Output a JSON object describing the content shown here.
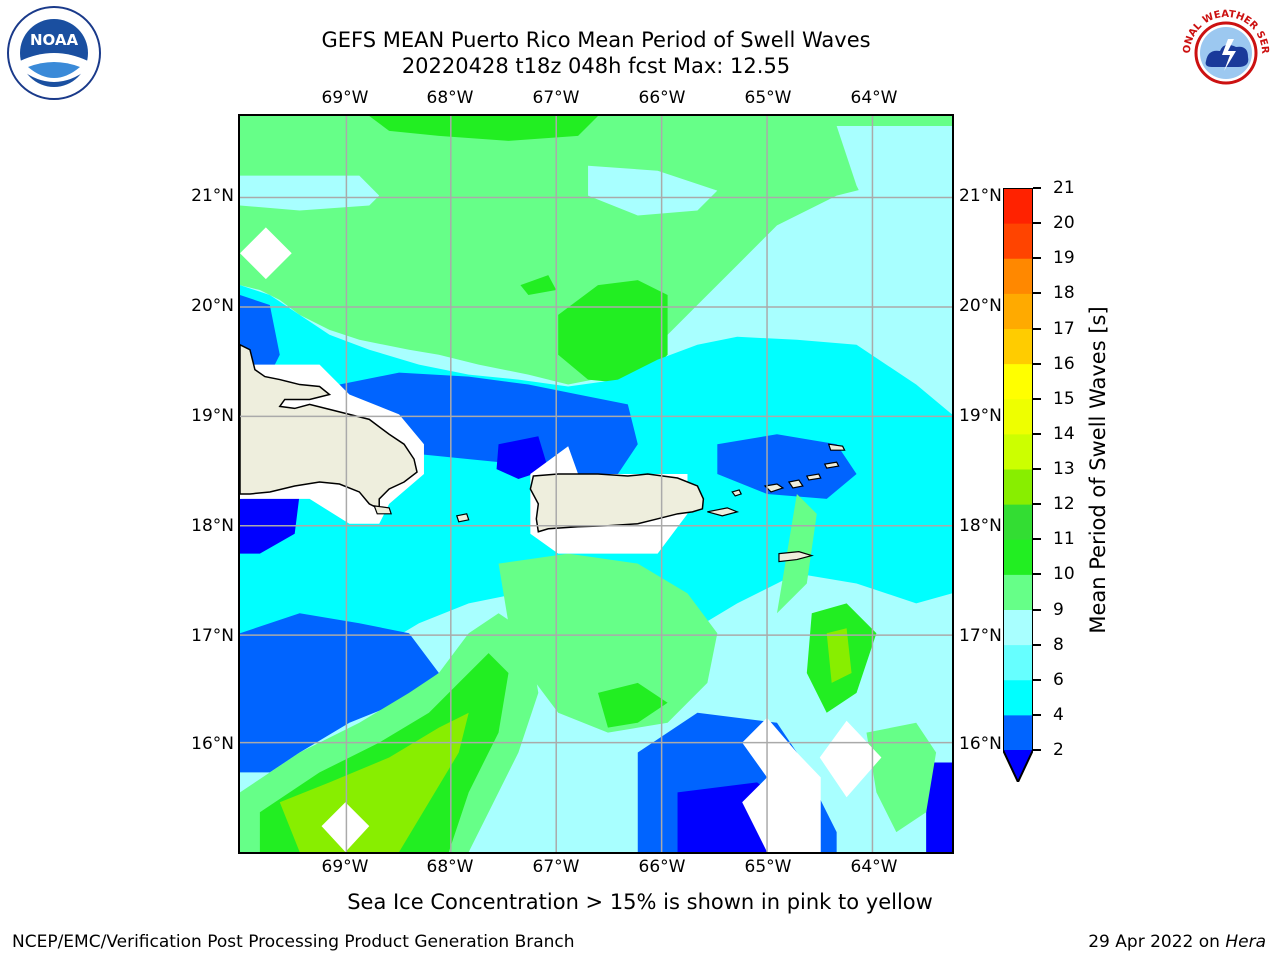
{
  "title_line1": "GEFS MEAN Puerto Rico Mean Period of Swell Waves",
  "title_line2": "20220428 t18z 048h fcst   Max: 12.55",
  "lon_labels": [
    "69°W",
    "68°W",
    "67°W",
    "66°W",
    "65°W",
    "64°W"
  ],
  "lat_labels": [
    "21°N",
    "20°N",
    "19°N",
    "18°N",
    "17°N",
    "16°N"
  ],
  "colorbar": {
    "title": "Mean Period of Swell Waves [s]",
    "ticks": [
      "2",
      "4",
      "6",
      "8",
      "9",
      "10",
      "11",
      "12",
      "13",
      "14",
      "15",
      "16",
      "17",
      "18",
      "19",
      "20",
      "21"
    ],
    "colors": [
      "#0000ff",
      "#0064ff",
      "#00ffff",
      "#66ffff",
      "#a8ffff",
      "#66ff88",
      "#22ee22",
      "#33dd33",
      "#88ee00",
      "#ccff00",
      "#eeff00",
      "#ffff00",
      "#ffcc00",
      "#ffaa00",
      "#ff8800",
      "#ff4400",
      "#ff2200",
      "#ff0000"
    ]
  },
  "footer_note": "Sea Ice Concentration > 15% is shown in pink to yellow",
  "credit": "NCEP/EMC/Verification Post Processing Product Generation Branch",
  "date_text": "29 Apr 2022 on ",
  "date_machine": "Hera",
  "logos": {
    "left": "NOAA",
    "right": "NATIONAL WEATHER SERVICE"
  }
}
